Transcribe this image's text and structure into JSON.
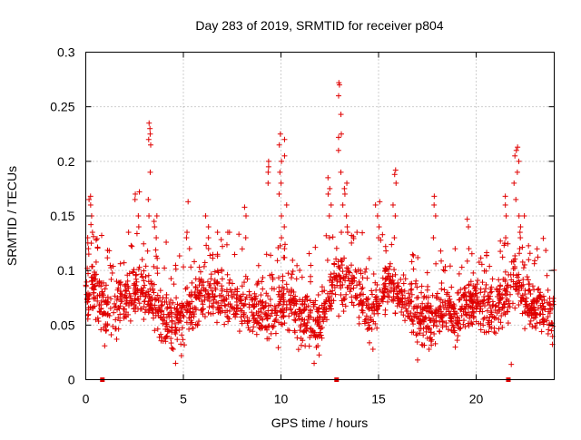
{
  "chart_data": {
    "type": "scatter",
    "title": "Day 283 of 2019, SRMTID for receiver p804",
    "xlabel": "GPS time / hours",
    "ylabel": "SRMTID / TECUs",
    "xlim": [
      0,
      24
    ],
    "ylim": [
      0,
      0.3
    ],
    "x_ticks": [
      0,
      5,
      10,
      15,
      20
    ],
    "x_tick_labels": [
      "0",
      "5",
      "10",
      "15",
      "20"
    ],
    "y_ticks": [
      0,
      0.05,
      0.1,
      0.15,
      0.2,
      0.25,
      0.3
    ],
    "y_tick_labels": [
      "0",
      "0.05",
      "0.1",
      "0.15",
      "0.2",
      "0.25",
      "0.3"
    ],
    "grid": true,
    "marker": "plus",
    "color": "#e00000",
    "zero_markers_x": [
      0.85,
      12.85,
      21.65
    ],
    "trend_anchors": [
      {
        "x": 0.0,
        "y": 0.08
      },
      {
        "x": 0.5,
        "y": 0.085
      },
      {
        "x": 1.0,
        "y": 0.06
      },
      {
        "x": 1.5,
        "y": 0.065
      },
      {
        "x": 2.0,
        "y": 0.075
      },
      {
        "x": 2.5,
        "y": 0.08
      },
      {
        "x": 3.0,
        "y": 0.08
      },
      {
        "x": 3.5,
        "y": 0.07
      },
      {
        "x": 4.0,
        "y": 0.055
      },
      {
        "x": 4.5,
        "y": 0.05
      },
      {
        "x": 5.0,
        "y": 0.055
      },
      {
        "x": 5.5,
        "y": 0.07
      },
      {
        "x": 6.0,
        "y": 0.08
      },
      {
        "x": 6.5,
        "y": 0.08
      },
      {
        "x": 7.0,
        "y": 0.075
      },
      {
        "x": 7.5,
        "y": 0.07
      },
      {
        "x": 8.0,
        "y": 0.065
      },
      {
        "x": 8.5,
        "y": 0.065
      },
      {
        "x": 9.0,
        "y": 0.065
      },
      {
        "x": 9.5,
        "y": 0.06
      },
      {
        "x": 10.0,
        "y": 0.07
      },
      {
        "x": 10.5,
        "y": 0.07
      },
      {
        "x": 11.0,
        "y": 0.055
      },
      {
        "x": 11.5,
        "y": 0.055
      },
      {
        "x": 12.0,
        "y": 0.05
      },
      {
        "x": 12.5,
        "y": 0.08
      },
      {
        "x": 13.0,
        "y": 0.095
      },
      {
        "x": 13.5,
        "y": 0.09
      },
      {
        "x": 14.0,
        "y": 0.075
      },
      {
        "x": 14.5,
        "y": 0.06
      },
      {
        "x": 15.0,
        "y": 0.07
      },
      {
        "x": 15.5,
        "y": 0.09
      },
      {
        "x": 16.0,
        "y": 0.08
      },
      {
        "x": 16.5,
        "y": 0.07
      },
      {
        "x": 17.0,
        "y": 0.06
      },
      {
        "x": 17.5,
        "y": 0.055
      },
      {
        "x": 18.0,
        "y": 0.06
      },
      {
        "x": 18.5,
        "y": 0.065
      },
      {
        "x": 19.0,
        "y": 0.06
      },
      {
        "x": 19.5,
        "y": 0.065
      },
      {
        "x": 20.0,
        "y": 0.07
      },
      {
        "x": 20.5,
        "y": 0.07
      },
      {
        "x": 21.0,
        "y": 0.065
      },
      {
        "x": 21.5,
        "y": 0.075
      },
      {
        "x": 22.0,
        "y": 0.09
      },
      {
        "x": 22.5,
        "y": 0.07
      },
      {
        "x": 23.0,
        "y": 0.065
      },
      {
        "x": 23.5,
        "y": 0.065
      },
      {
        "x": 24.0,
        "y": 0.06
      }
    ],
    "noise_amplitude": 0.028,
    "samples_per_hour": 85,
    "spike_groups": [
      {
        "x_start": 0.05,
        "x_end": 0.3,
        "values": [
          0.115,
          0.12,
          0.125,
          0.13
        ]
      },
      {
        "x_start": 0.15,
        "x_end": 0.35,
        "values": [
          0.135,
          0.142,
          0.15,
          0.16,
          0.165,
          0.168
        ]
      },
      {
        "x_start": 2.5,
        "x_end": 2.75,
        "values": [
          0.14,
          0.15,
          0.165,
          0.17,
          0.172
        ]
      },
      {
        "x_start": 3.2,
        "x_end": 3.35,
        "values": [
          0.15,
          0.165,
          0.19,
          0.215,
          0.22,
          0.225,
          0.23,
          0.235
        ]
      },
      {
        "x_start": 3.4,
        "x_end": 3.65,
        "values": [
          0.13,
          0.14,
          0.145,
          0.15
        ]
      },
      {
        "x_start": 5.1,
        "x_end": 5.35,
        "values": [
          0.12,
          0.13,
          0.135,
          0.163
        ]
      },
      {
        "x_start": 6.0,
        "x_end": 6.3,
        "values": [
          0.12,
          0.13,
          0.14,
          0.15
        ]
      },
      {
        "x_start": 8.1,
        "x_end": 8.3,
        "values": [
          0.13,
          0.15,
          0.158
        ]
      },
      {
        "x_start": 9.3,
        "x_end": 9.5,
        "values": [
          0.18,
          0.19,
          0.195,
          0.2
        ]
      },
      {
        "x_start": 9.9,
        "x_end": 10.2,
        "values": [
          0.17,
          0.18,
          0.19,
          0.2,
          0.205,
          0.215,
          0.22,
          0.225
        ]
      },
      {
        "x_start": 10.0,
        "x_end": 10.3,
        "values": [
          0.12,
          0.13,
          0.14,
          0.15,
          0.16
        ]
      },
      {
        "x_start": 12.4,
        "x_end": 12.6,
        "values": [
          0.13,
          0.15,
          0.16,
          0.17,
          0.175,
          0.185
        ]
      },
      {
        "x_start": 12.9,
        "x_end": 13.1,
        "values": [
          0.19,
          0.21,
          0.222,
          0.225,
          0.243,
          0.26,
          0.27,
          0.272
        ]
      },
      {
        "x_start": 13.1,
        "x_end": 13.4,
        "values": [
          0.14,
          0.15,
          0.16,
          0.17,
          0.175,
          0.18
        ]
      },
      {
        "x_start": 14.8,
        "x_end": 15.1,
        "values": [
          0.13,
          0.14,
          0.15,
          0.16,
          0.163
        ]
      },
      {
        "x_start": 15.7,
        "x_end": 15.95,
        "values": [
          0.13,
          0.15,
          0.16,
          0.18,
          0.188,
          0.192
        ]
      },
      {
        "x_start": 17.8,
        "x_end": 18.0,
        "values": [
          0.13,
          0.15,
          0.16,
          0.168
        ]
      },
      {
        "x_start": 19.5,
        "x_end": 19.7,
        "values": [
          0.12,
          0.14,
          0.147
        ]
      },
      {
        "x_start": 21.4,
        "x_end": 21.6,
        "values": [
          0.13,
          0.15,
          0.16,
          0.168
        ]
      },
      {
        "x_start": 21.9,
        "x_end": 22.2,
        "values": [
          0.15,
          0.165,
          0.18,
          0.19,
          0.2,
          0.205,
          0.21,
          0.213
        ]
      },
      {
        "x_start": 22.2,
        "x_end": 22.5,
        "values": [
          0.12,
          0.13,
          0.14,
          0.15
        ]
      }
    ],
    "low_outliers": [
      {
        "x": 4.6,
        "y": 0.015
      },
      {
        "x": 11.7,
        "y": 0.015
      },
      {
        "x": 21.8,
        "y": 0.014
      },
      {
        "x": 17.0,
        "y": 0.018
      },
      {
        "x": 4.9,
        "y": 0.022
      }
    ]
  }
}
